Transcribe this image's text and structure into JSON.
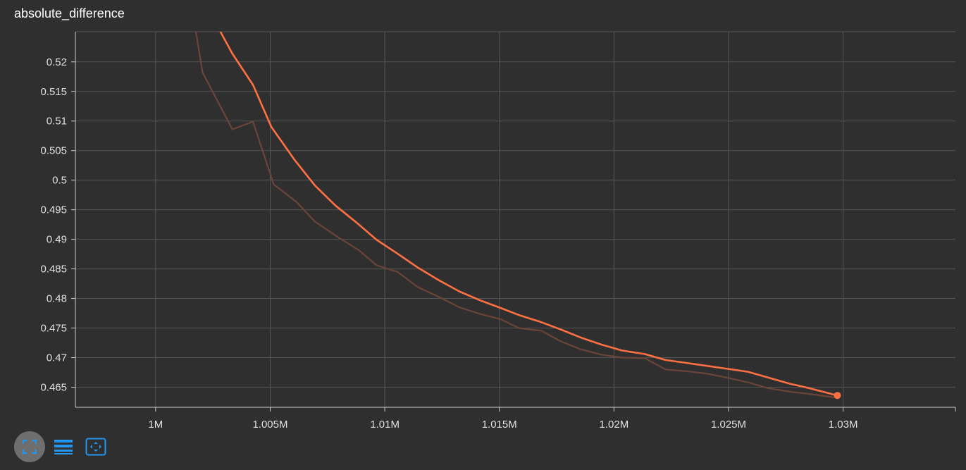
{
  "title": "absolute_difference",
  "colors": {
    "background": "#2f2f2f",
    "grid": "#555555",
    "main_line": "#ff7043",
    "raw_line": "#6b4537",
    "toolbar_icon": "#2196f3"
  },
  "toolbar": {
    "icons": [
      "fit-to-data-icon",
      "toggle-log-scale-icon",
      "reset-zoom-icon"
    ]
  },
  "chart_data": {
    "type": "line",
    "title": "absolute_difference",
    "xlabel": "",
    "ylabel": "",
    "xlim": [
      996500,
      1034900
    ],
    "ylim": [
      0.4616,
      0.5251
    ],
    "x_ticks": [
      1000000,
      1005000,
      1010000,
      1015000,
      1020000,
      1025000,
      1030000
    ],
    "x_tick_labels": [
      "1M",
      "1.005M",
      "1.01M",
      "1.015M",
      "1.02M",
      "1.025M",
      "1.03M"
    ],
    "y_ticks": [
      0.465,
      0.47,
      0.475,
      0.48,
      0.485,
      0.49,
      0.495,
      0.5,
      0.505,
      0.51,
      0.515,
      0.52
    ],
    "y_tick_labels": [
      "0.465",
      "0.47",
      "0.475",
      "0.48",
      "0.485",
      "0.49",
      "0.495",
      "0.5",
      "0.505",
      "0.51",
      "0.515",
      "0.52"
    ],
    "grid": true,
    "series": [
      {
        "role": "raw",
        "x": [
          1001750,
          1002050,
          1003350,
          1004250,
          1005150,
          1006150,
          1006950,
          1007950,
          1008850,
          1009650,
          1010550,
          1011450,
          1012450,
          1013250,
          1014150,
          1015050,
          1015850,
          1016850,
          1017650,
          1018550,
          1019450,
          1020350,
          1021350,
          1022250,
          1023150,
          1024050,
          1024950,
          1025850,
          1026750,
          1027750,
          1028650,
          1029750
        ],
        "y": [
          0.5253,
          0.5182,
          0.5086,
          0.5099,
          0.4993,
          0.4963,
          0.493,
          0.4904,
          0.4882,
          0.4856,
          0.4845,
          0.4819,
          0.4801,
          0.4785,
          0.4774,
          0.4765,
          0.475,
          0.4745,
          0.4728,
          0.4714,
          0.4705,
          0.47,
          0.4699,
          0.468,
          0.4677,
          0.4673,
          0.4666,
          0.4658,
          0.4648,
          0.4642,
          0.4638,
          0.4632
        ]
      },
      {
        "role": "smoothed",
        "x": [
          1002800,
          1003350,
          1004250,
          1005050,
          1006050,
          1006950,
          1007850,
          1008750,
          1009650,
          1010550,
          1011450,
          1012350,
          1013250,
          1014150,
          1015050,
          1015850,
          1016750,
          1017650,
          1018550,
          1019450,
          1020350,
          1021350,
          1022250,
          1023150,
          1024050,
          1024950,
          1025850,
          1026750,
          1027650,
          1028550,
          1029750
        ],
        "y": [
          0.5253,
          0.5214,
          0.5161,
          0.509,
          0.5035,
          0.4991,
          0.4957,
          0.4929,
          0.4899,
          0.4876,
          0.4852,
          0.4831,
          0.4812,
          0.4797,
          0.4784,
          0.4772,
          0.4761,
          0.4748,
          0.4734,
          0.4722,
          0.4712,
          0.4706,
          0.4696,
          0.4691,
          0.4686,
          0.4681,
          0.4676,
          0.4666,
          0.4656,
          0.4648,
          0.4636
        ]
      }
    ]
  }
}
